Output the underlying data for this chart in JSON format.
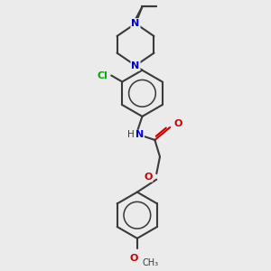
{
  "bg_color": "#ebebeb",
  "bond_color": "#3a3a3a",
  "N_color": "#0000cc",
  "O_color": "#cc0000",
  "Cl_color": "#00aa00",
  "line_width": 1.5,
  "figsize": [
    3.0,
    3.0
  ],
  "dpi": 100,
  "xlim": [
    -1.2,
    1.2
  ],
  "ylim": [
    -1.55,
    1.55
  ]
}
